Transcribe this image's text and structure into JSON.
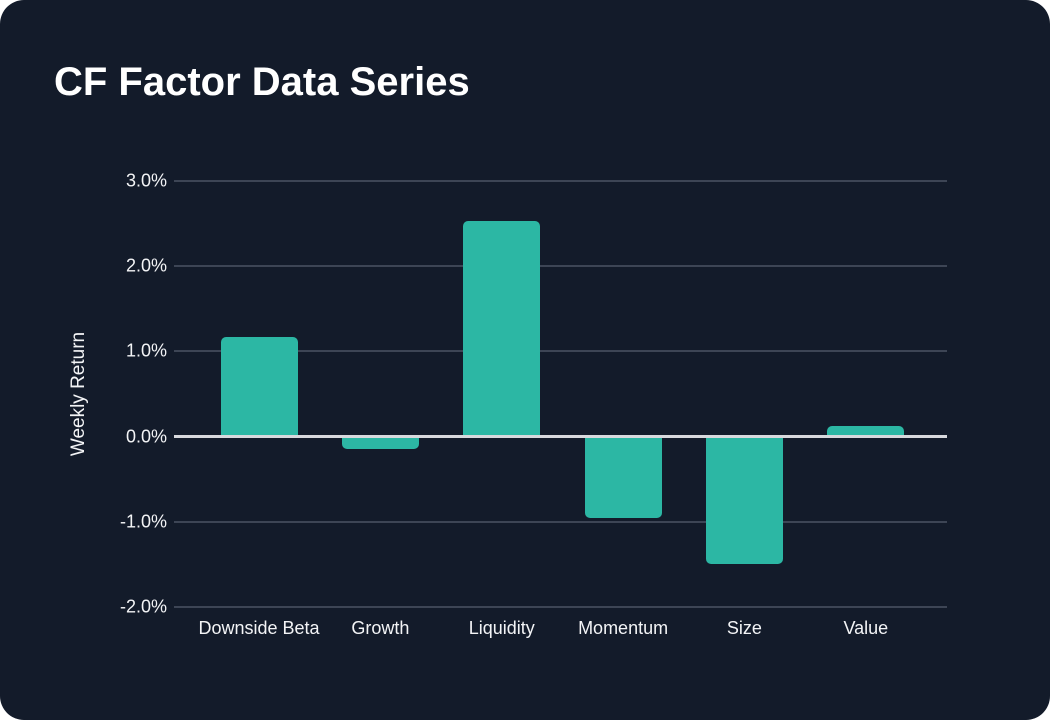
{
  "page": {
    "title": "CF Factor Data Series"
  },
  "colors": {
    "card_background": "#131b2a",
    "bar": "#2cb7a4",
    "gridline": "#3d4555",
    "zero_line": "#d8d9dd",
    "text": "#f3f4f6",
    "title_text": "#ffffff"
  },
  "chart_data": {
    "type": "bar",
    "title": "CF Factor Data Series",
    "categories": [
      "Downside Beta",
      "Growth",
      "Liquidity",
      "Momentum",
      "Size",
      "Value"
    ],
    "values": [
      1.17,
      -0.15,
      2.53,
      -0.95,
      -1.5,
      0.13
    ],
    "unit": "%",
    "xlabel": "",
    "ylabel": "Weekly Return",
    "ylim": [
      -2.0,
      3.0
    ],
    "ytick_step": 1.0,
    "yticks": [
      3.0,
      2.0,
      1.0,
      0.0,
      -1.0,
      -2.0
    ],
    "ytick_labels": [
      "3.0%",
      "2.0%",
      "1.0%",
      "0.0%",
      "-1.0%",
      "-2.0%"
    ],
    "grid": true,
    "legend": false,
    "bar_color": "#2cb7a4"
  }
}
